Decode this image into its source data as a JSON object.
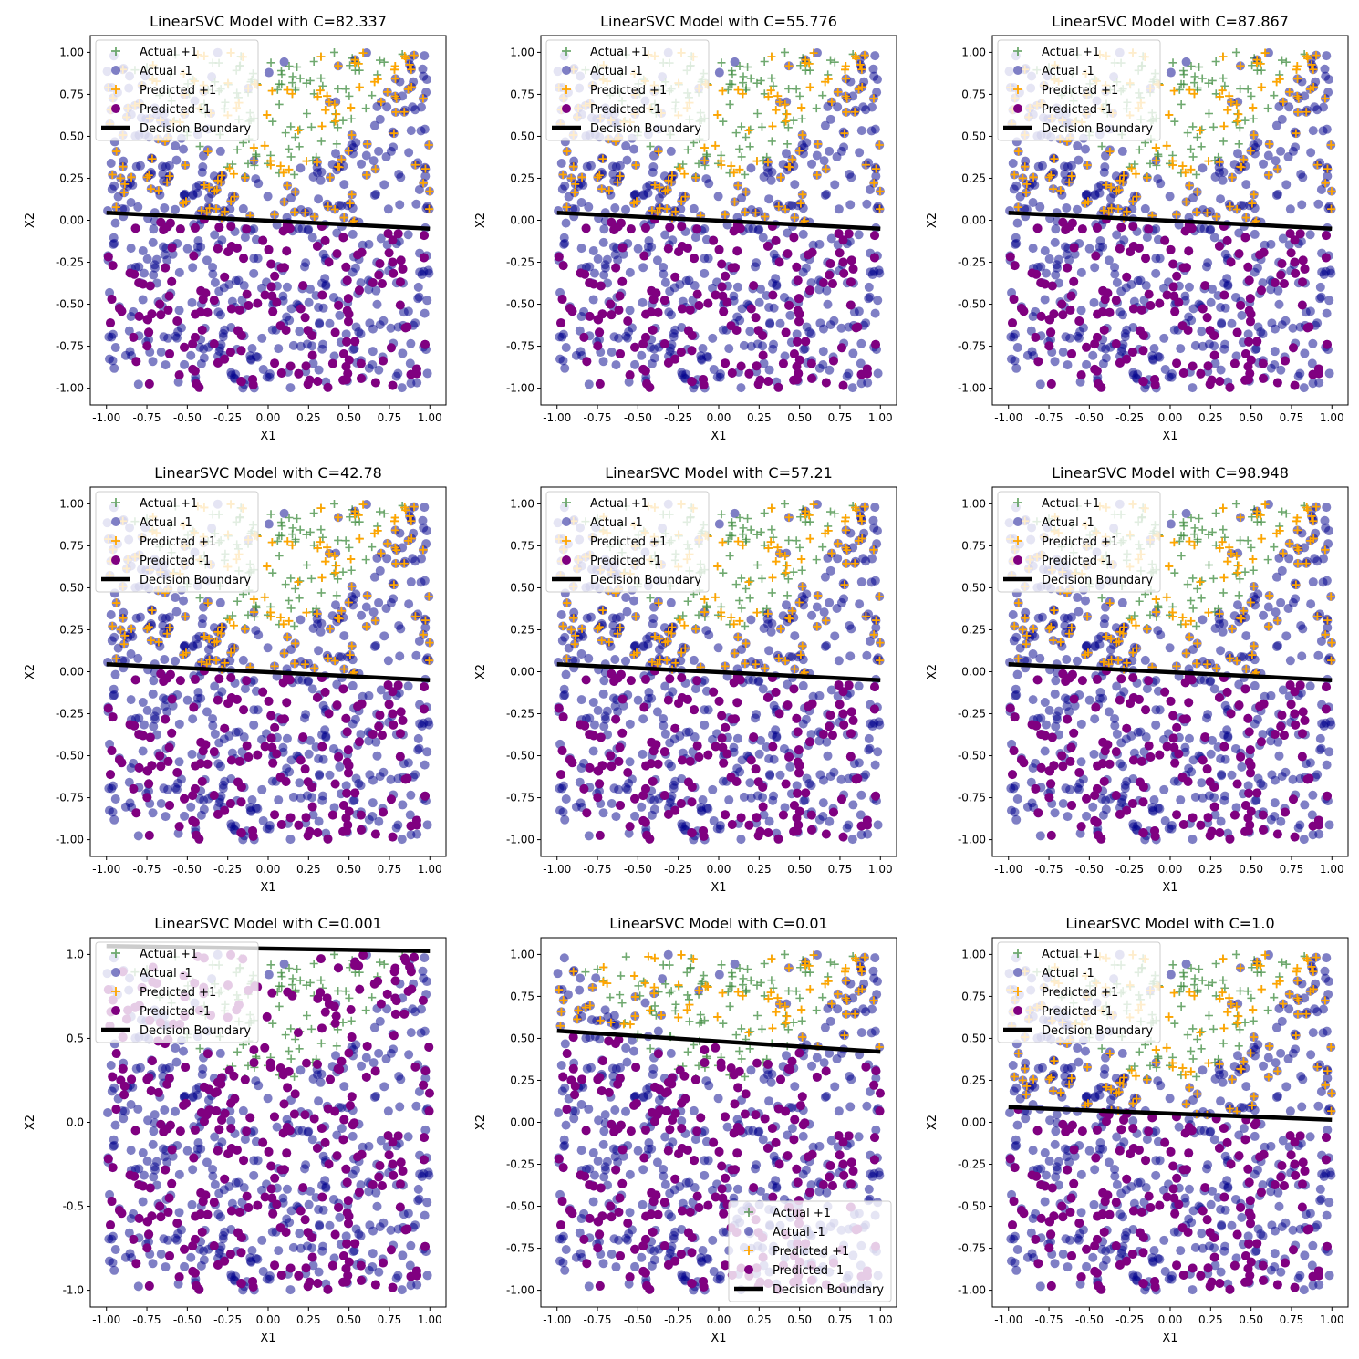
{
  "figure": {
    "background": "#ffffff"
  },
  "styles": {
    "actual_pos_color": "#3f8c3f",
    "actual_neg_color": "#00008b",
    "pred_pos_color": "#ffa500",
    "pred_neg_color": "#800080",
    "boundary_color": "#000000",
    "legend_labels": [
      "Actual +1",
      "Actual -1",
      "Predicted +1",
      "Predicted -1",
      "Decision Boundary"
    ]
  },
  "chart_data": [
    {
      "type": "scatter",
      "title": "LinearSVC Model with C=82.337",
      "xlabel": "X1",
      "ylabel": "X2",
      "xlim": [
        -1.1,
        1.1
      ],
      "ylim": [
        -1.1,
        1.1
      ],
      "xticks": [
        "-1.00",
        "-0.75",
        "-0.50",
        "-0.25",
        "0.00",
        "0.25",
        "0.50",
        "0.75",
        "1.00"
      ],
      "yticks": [
        "-1.00",
        "-0.75",
        "-0.50",
        "-0.25",
        "0.00",
        "0.25",
        "0.50",
        "0.75",
        "1.00"
      ],
      "boundary": [
        [
          -1.0,
          0.045
        ],
        [
          1.0,
          -0.05
        ]
      ],
      "legend_position": "upper left",
      "grid": false
    },
    {
      "type": "scatter",
      "title": "LinearSVC Model with C=55.776",
      "xlabel": "X1",
      "ylabel": "X2",
      "xlim": [
        -1.1,
        1.1
      ],
      "ylim": [
        -1.1,
        1.1
      ],
      "xticks": [
        "-1.00",
        "-0.75",
        "-0.50",
        "-0.25",
        "0.00",
        "0.25",
        "0.50",
        "0.75",
        "1.00"
      ],
      "yticks": [
        "-1.00",
        "-0.75",
        "-0.50",
        "-0.25",
        "0.00",
        "0.25",
        "0.50",
        "0.75",
        "1.00"
      ],
      "boundary": [
        [
          -1.0,
          0.045
        ],
        [
          1.0,
          -0.05
        ]
      ],
      "legend_position": "upper left",
      "grid": false
    },
    {
      "type": "scatter",
      "title": "LinearSVC Model with C=87.867",
      "xlabel": "X1",
      "ylabel": "X2",
      "xlim": [
        -1.1,
        1.1
      ],
      "ylim": [
        -1.1,
        1.1
      ],
      "xticks": [
        "-1.00",
        "-0.75",
        "-0.50",
        "-0.25",
        "0.00",
        "0.25",
        "0.50",
        "0.75",
        "1.00"
      ],
      "yticks": [
        "-1.00",
        "-0.75",
        "-0.50",
        "-0.25",
        "0.00",
        "0.25",
        "0.50",
        "0.75",
        "1.00"
      ],
      "boundary": [
        [
          -1.0,
          0.045
        ],
        [
          1.0,
          -0.05
        ]
      ],
      "legend_position": "upper left",
      "grid": false
    },
    {
      "type": "scatter",
      "title": "LinearSVC Model with C=42.78",
      "xlabel": "X1",
      "ylabel": "X2",
      "xlim": [
        -1.1,
        1.1
      ],
      "ylim": [
        -1.1,
        1.1
      ],
      "xticks": [
        "-1.00",
        "-0.75",
        "-0.50",
        "-0.25",
        "0.00",
        "0.25",
        "0.50",
        "0.75",
        "1.00"
      ],
      "yticks": [
        "-1.00",
        "-0.75",
        "-0.50",
        "-0.25",
        "0.00",
        "0.25",
        "0.50",
        "0.75",
        "1.00"
      ],
      "boundary": [
        [
          -1.0,
          0.045
        ],
        [
          1.0,
          -0.05
        ]
      ],
      "legend_position": "upper left",
      "grid": false
    },
    {
      "type": "scatter",
      "title": "LinearSVC Model with C=57.21",
      "xlabel": "X1",
      "ylabel": "X2",
      "xlim": [
        -1.1,
        1.1
      ],
      "ylim": [
        -1.1,
        1.1
      ],
      "xticks": [
        "-1.00",
        "-0.75",
        "-0.50",
        "-0.25",
        "0.00",
        "0.25",
        "0.50",
        "0.75",
        "1.00"
      ],
      "yticks": [
        "-1.00",
        "-0.75",
        "-0.50",
        "-0.25",
        "0.00",
        "0.25",
        "0.50",
        "0.75",
        "1.00"
      ],
      "boundary": [
        [
          -1.0,
          0.045
        ],
        [
          1.0,
          -0.05
        ]
      ],
      "legend_position": "upper left",
      "grid": false
    },
    {
      "type": "scatter",
      "title": "LinearSVC Model with C=98.948",
      "xlabel": "X1",
      "ylabel": "X2",
      "xlim": [
        -1.1,
        1.1
      ],
      "ylim": [
        -1.1,
        1.1
      ],
      "xticks": [
        "-1.00",
        "-0.75",
        "-0.50",
        "-0.25",
        "0.00",
        "0.25",
        "0.50",
        "0.75",
        "1.00"
      ],
      "yticks": [
        "-1.00",
        "-0.75",
        "-0.50",
        "-0.25",
        "0.00",
        "0.25",
        "0.50",
        "0.75",
        "1.00"
      ],
      "boundary": [
        [
          -1.0,
          0.045
        ],
        [
          1.0,
          -0.05
        ]
      ],
      "legend_position": "upper left",
      "grid": false
    },
    {
      "type": "scatter",
      "title": "LinearSVC Model with C=0.001",
      "xlabel": "X1",
      "ylabel": "X2",
      "xlim": [
        -1.1,
        1.1
      ],
      "ylim": [
        -1.1,
        1.1
      ],
      "xticks": [
        "-1.00",
        "-0.75",
        "-0.50",
        "-0.25",
        "0.00",
        "0.25",
        "0.50",
        "0.75",
        "1.00"
      ],
      "yticks": [
        "-1.0",
        "-0.5",
        "0.0",
        "0.5",
        "1.0"
      ],
      "boundary": [
        [
          -1.0,
          1.05
        ],
        [
          1.0,
          1.02
        ]
      ],
      "legend_position": "upper left",
      "grid": false
    },
    {
      "type": "scatter",
      "title": "LinearSVC Model with C=0.01",
      "xlabel": "X1",
      "ylabel": "X2",
      "xlim": [
        -1.1,
        1.1
      ],
      "ylim": [
        -1.1,
        1.1
      ],
      "xticks": [
        "-1.00",
        "-0.75",
        "-0.50",
        "-0.25",
        "0.00",
        "0.25",
        "0.50",
        "0.75",
        "1.00"
      ],
      "yticks": [
        "-1.00",
        "-0.75",
        "-0.50",
        "-0.25",
        "0.00",
        "0.25",
        "0.50",
        "0.75",
        "1.00"
      ],
      "boundary": [
        [
          -1.0,
          0.545
        ],
        [
          1.0,
          0.42
        ]
      ],
      "legend_position": "lower right",
      "grid": false
    },
    {
      "type": "scatter",
      "title": "LinearSVC Model with C=1.0",
      "xlabel": "X1",
      "ylabel": "X2",
      "xlim": [
        -1.1,
        1.1
      ],
      "ylim": [
        -1.1,
        1.1
      ],
      "xticks": [
        "-1.00",
        "-0.75",
        "-0.50",
        "-0.25",
        "0.00",
        "0.25",
        "0.50",
        "0.75",
        "1.00"
      ],
      "yticks": [
        "-1.00",
        "-0.75",
        "-0.50",
        "-0.25",
        "0.00",
        "0.25",
        "0.50",
        "0.75",
        "1.00"
      ],
      "boundary": [
        [
          -1.0,
          0.09
        ],
        [
          1.0,
          0.015
        ]
      ],
      "legend_position": "upper left",
      "grid": false
    }
  ]
}
